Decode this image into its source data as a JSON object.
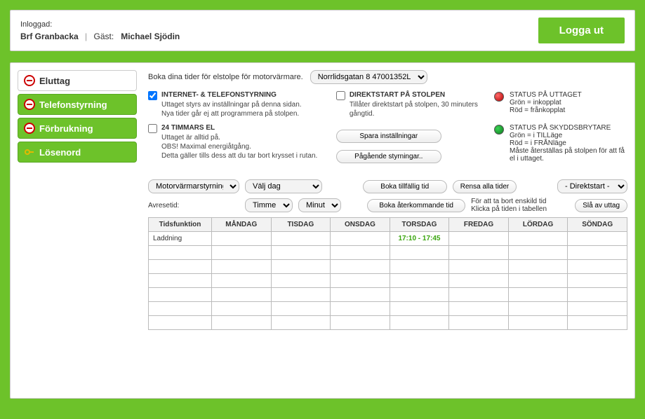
{
  "header": {
    "logged_in_label": "Inloggad:",
    "tenant": "Brf Granbacka",
    "guest_label": "Gäst:",
    "guest_name": "Michael Sjödin",
    "logout": "Logga ut"
  },
  "sidebar": {
    "items": [
      {
        "label": "Eluttag",
        "active": true
      },
      {
        "label": "Telefonstyrning",
        "active": false
      },
      {
        "label": "Förbrukning",
        "active": false
      },
      {
        "label": "Lösenord",
        "active": false
      }
    ]
  },
  "top": {
    "text": "Boka dina tider för elstolpe för motorvärmare.",
    "address_select": "Norrlidsgatan 8  47001352L"
  },
  "option1": {
    "checked": true,
    "title": "INTERNET- & TELEFONSTYRNING",
    "desc": "Uttaget styrs av inställningar på denna sidan.\nNya tider går ej att programmera på stolpen."
  },
  "option2": {
    "checked": false,
    "title": "DIREKTSTART PÅ STOLPEN",
    "desc": "Tillåter direktstart på stolpen, 30 minuters gångtid."
  },
  "option3": {
    "checked": false,
    "title": "24 TIMMARS EL",
    "desc": "Uttaget är alltid på.\nOBS! Maximal energiåtgång.\nDetta gäller tills dess att du tar bort krysset i rutan."
  },
  "buttons": {
    "save": "Spara inställningar",
    "ongoing": "Pågående styrningar..",
    "book_temp": "Boka tillfällig tid",
    "clear_all": "Rensa alla tider",
    "book_recurring": "Boka återkommande tid",
    "turn_off": "Slå av uttag"
  },
  "status1": {
    "title": "STATUS PÅ UTTAGET",
    "line1": "Grön = inkopplat",
    "line2": "Röd = frånkopplat",
    "dot_color": "#cc0000"
  },
  "status2": {
    "title": "STATUS PÅ SKYDDSBRYTARE",
    "line1": "Grön = i TILLäge",
    "line2": "Röd = i FRÅNläge",
    "line3": "Måste återställas på stolpen för att få el i uttaget.",
    "dot_color": "#0e7a1f"
  },
  "selects": {
    "mode": "Motorvärmarstyrning",
    "day": "Välj dag",
    "direct": "- Direktstart -",
    "hour": "Timme",
    "minute": "Minut"
  },
  "labels": {
    "departure": "Avresetid:",
    "remove_hint1": "För att ta bort enskild tid",
    "remove_hint2": "Klicka på tiden i tabellen"
  },
  "table": {
    "headers": [
      "Tidsfunktion",
      "MÅNDAG",
      "TISDAG",
      "ONSDAG",
      "TORSDAG",
      "FREDAG",
      "LÖRDAG",
      "SÖNDAG"
    ],
    "rows": [
      {
        "func": "Laddning",
        "cells": [
          "",
          "",
          "",
          "17:10 - 17:45",
          "",
          "",
          ""
        ]
      },
      {
        "func": "",
        "cells": [
          "",
          "",
          "",
          "",
          "",
          "",
          ""
        ]
      },
      {
        "func": "",
        "cells": [
          "",
          "",
          "",
          "",
          "",
          "",
          ""
        ]
      },
      {
        "func": "",
        "cells": [
          "",
          "",
          "",
          "",
          "",
          "",
          ""
        ]
      },
      {
        "func": "",
        "cells": [
          "",
          "",
          "",
          "",
          "",
          "",
          ""
        ]
      },
      {
        "func": "",
        "cells": [
          "",
          "",
          "",
          "",
          "",
          "",
          ""
        ]
      },
      {
        "func": "",
        "cells": [
          "",
          "",
          "",
          "",
          "",
          "",
          ""
        ]
      }
    ]
  },
  "colors": {
    "accent": "#6dc22a",
    "time_highlight": "#39a50d"
  }
}
